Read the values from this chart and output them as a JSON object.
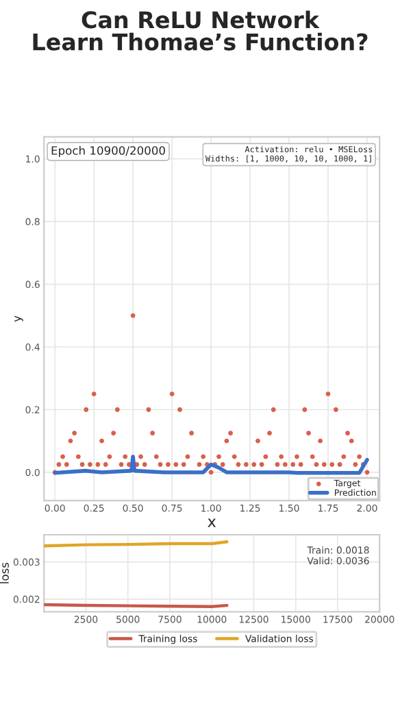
{
  "chart_data": [
    {
      "type": "scatter",
      "title": "Can ReLU Network\nLearn Thomae’s Function?",
      "xlabel": "x",
      "ylabel": "y",
      "annotations": [
        "Epoch 10900/20000",
        "Activation: relu • MSELoss\nWidths: [1, 1000, 10, 10, 1000, 1]"
      ],
      "series": [
        {
          "name": "Target",
          "type": "scatter",
          "color": "#d9604b",
          "marker": "circle",
          "x": [
            0,
            0.025,
            0.05,
            0.075,
            0.1,
            0.125,
            0.15,
            0.175,
            0.2,
            0.225,
            0.25,
            0.275,
            0.3,
            0.325,
            0.35,
            0.375,
            0.4,
            0.425,
            0.45,
            0.475,
            0.5,
            0.525,
            0.55,
            0.575,
            0.6,
            0.625,
            0.65,
            0.675,
            0.725,
            0.75,
            0.775,
            0.8,
            0.825,
            0.85,
            0.875,
            0.925,
            0.95,
            0.975,
            1.0,
            1.025,
            1.05,
            1.075,
            1.1,
            1.125,
            1.15,
            1.175,
            1.225,
            1.275,
            1.3,
            1.325,
            1.35,
            1.375,
            1.4,
            1.425,
            1.45,
            1.475,
            1.525,
            1.55,
            1.575,
            1.6,
            1.625,
            1.65,
            1.675,
            1.7,
            1.725,
            1.75,
            1.775,
            1.8,
            1.825,
            1.85,
            1.875,
            1.9,
            1.925,
            1.95,
            1.975,
            2.0
          ],
          "values": [
            0,
            0.025,
            0.05,
            0.025,
            0.1,
            0.125,
            0.05,
            0.025,
            0.2,
            0.025,
            0.25,
            0.025,
            0.1,
            0.025,
            0.05,
            0.125,
            0.2,
            0.025,
            0.05,
            0.025,
            0.5,
            0.025,
            0.05,
            0.025,
            0.2,
            0.125,
            0.05,
            0.025,
            0.025,
            0.25,
            0.025,
            0.2,
            0.025,
            0.05,
            0.125,
            0.025,
            0.05,
            0.025,
            0,
            0.025,
            0.05,
            0.025,
            0.1,
            0.125,
            0.05,
            0.025,
            0.025,
            0.025,
            0.1,
            0.025,
            0.05,
            0.125,
            0.2,
            0.025,
            0.05,
            0.025,
            0.025,
            0.05,
            0.025,
            0.2,
            0.125,
            0.05,
            0.025,
            0.1,
            0.025,
            0.25,
            0.025,
            0.2,
            0.025,
            0.05,
            0.125,
            0.1,
            0.025,
            0.05,
            0.025,
            0
          ]
        },
        {
          "name": "Prediction",
          "type": "line",
          "color": "#3a6fc9",
          "marker": "none",
          "line_style": "solid",
          "x": [
            0,
            0.2,
            0.3,
            0.49,
            0.5,
            0.51,
            0.7,
            0.95,
            1.0,
            1.05,
            1.1,
            1.5,
            1.55,
            1.95,
            2.0
          ],
          "values": [
            -0.002,
            0.005,
            0.0,
            0.005,
            0.05,
            0.005,
            0.0,
            0.0,
            0.025,
            0.015,
            0.0,
            0.0,
            -0.002,
            -0.002,
            0.04
          ]
        }
      ],
      "xlim": [
        -0.07,
        2.08
      ],
      "ylim": [
        -0.09,
        1.07
      ],
      "xticks": [
        {
          "value": 0,
          "label": "0.00"
        },
        {
          "value": 0.25,
          "label": "0.25"
        },
        {
          "value": 0.5,
          "label": "0.50"
        },
        {
          "value": 0.75,
          "label": "0.75"
        },
        {
          "value": 1,
          "label": "1.00"
        },
        {
          "value": 1.25,
          "label": "1.25"
        },
        {
          "value": 1.5,
          "label": "1.50"
        },
        {
          "value": 1.75,
          "label": "1.75"
        },
        {
          "value": 2,
          "label": "2.00"
        }
      ],
      "yticks": [
        {
          "value": 0,
          "label": "0.0"
        },
        {
          "value": 0.2,
          "label": "0.2"
        },
        {
          "value": 0.4,
          "label": "0.4"
        },
        {
          "value": 0.6,
          "label": "0.6"
        },
        {
          "value": 0.8,
          "label": "0.8"
        },
        {
          "value": 1,
          "label": "1.0"
        }
      ],
      "grid": true,
      "legend": "bottom right"
    },
    {
      "type": "line",
      "ylabel": "loss",
      "annotations": [
        "Train: 0.0018\nValid: 0.0036"
      ],
      "series": [
        {
          "name": "Training loss",
          "color": "#c8584a",
          "x": [
            0,
            2500,
            5000,
            7500,
            10000,
            10900
          ],
          "values": [
            0.00185,
            0.00183,
            0.00182,
            0.00181,
            0.0018,
            0.00183
          ]
        },
        {
          "name": "Validation loss",
          "color": "#e0a526",
          "x": [
            0,
            2500,
            5000,
            7500,
            10000,
            10900
          ],
          "values": [
            0.00343,
            0.00346,
            0.00347,
            0.00349,
            0.00349,
            0.00354
          ]
        }
      ],
      "xlim": [
        0,
        20000
      ],
      "ylim": [
        0.00166,
        0.00373
      ],
      "xticks": [
        2500,
        5000,
        7500,
        10000,
        12500,
        15000,
        17500,
        20000
      ],
      "yticks": [
        0.002,
        0.003
      ],
      "grid": true,
      "legend": "bottom",
      "line_style": "solid"
    }
  ]
}
